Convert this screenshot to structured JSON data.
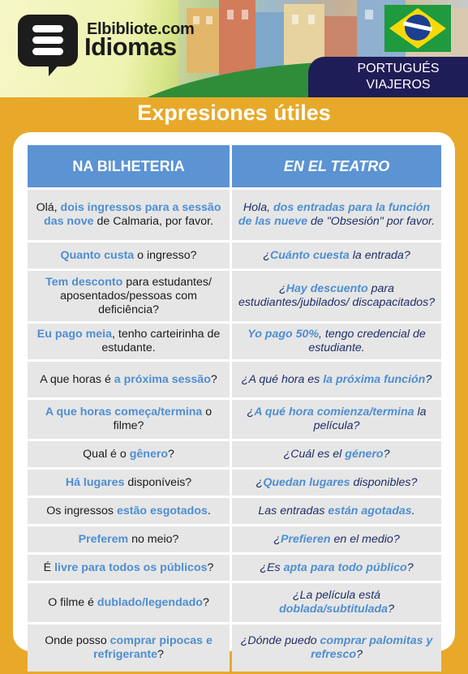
{
  "brand": {
    "top": "Elbibliote.com",
    "big": "Idiomas",
    "logo_icon": "chat-e-logo-icon"
  },
  "tag": {
    "line1": "PORTUGUÉS",
    "line2": "VIAJEROS"
  },
  "flag_icon": "brazil-flag-icon",
  "title": "Expresiones útiles",
  "colors": {
    "background": "#e8a92a",
    "header_cell": "#5b93d3",
    "highlight": "#4e8ed2",
    "row_bg": "#e6e6e6",
    "tag_bg": "#1f1d57"
  },
  "table": {
    "headers": [
      "NA BILHETERIA",
      "EN EL TEATRO"
    ],
    "rows": [
      {
        "pt": [
          {
            "t": "Olá, "
          },
          {
            "t": "dois ingressos para a sessão das nove",
            "hl": true
          },
          {
            "t": " de Calmaria, por favor."
          }
        ],
        "es": [
          {
            "t": "Hola, "
          },
          {
            "t": "dos entradas para la función de las nueve",
            "hl": true
          },
          {
            "t": " de \"Obsesión\" por favor."
          }
        ]
      },
      {
        "pt": [
          {
            "t": "Quanto custa",
            "hl": true
          },
          {
            "t": " o ingresso?"
          }
        ],
        "es": [
          {
            "t": "¿"
          },
          {
            "t": "Cuánto cuesta",
            "hl": true
          },
          {
            "t": " la entrada?"
          }
        ]
      },
      {
        "pt": [
          {
            "t": "Tem desconto",
            "hl": true
          },
          {
            "t": " para estudantes/ aposentados/pessoas com deficiência?"
          }
        ],
        "es": [
          {
            "t": "¿"
          },
          {
            "t": "Hay descuento",
            "hl": true
          },
          {
            "t": " para estudiantes/jubilados/ discapacitados?"
          }
        ]
      },
      {
        "pt": [
          {
            "t": "Eu pago meia",
            "hl": true
          },
          {
            "t": ", tenho carteirinha de estudante."
          }
        ],
        "es": [
          {
            "t": "Yo pago 50%",
            "hl": true
          },
          {
            "t": ", tengo credencial de estudiante."
          }
        ]
      },
      {
        "pt": [
          {
            "t": "A que horas é "
          },
          {
            "t": "a próxima sessão",
            "hl": true
          },
          {
            "t": "?"
          }
        ],
        "es": [
          {
            "t": "¿A qué hora es "
          },
          {
            "t": "la próxima función",
            "hl": true
          },
          {
            "t": "?"
          }
        ]
      },
      {
        "pt": [
          {
            "t": "A que horas começa/termina",
            "hl": true
          },
          {
            "t": " o filme?"
          }
        ],
        "es": [
          {
            "t": "¿"
          },
          {
            "t": "A qué hora comienza/termina",
            "hl": true
          },
          {
            "t": " la película?"
          }
        ]
      },
      {
        "pt": [
          {
            "t": "Qual é o "
          },
          {
            "t": "gênero",
            "hl": true
          },
          {
            "t": "?"
          }
        ],
        "es": [
          {
            "t": "¿Cuál es el "
          },
          {
            "t": "género",
            "hl": true
          },
          {
            "t": "?"
          }
        ]
      },
      {
        "pt": [
          {
            "t": "Há lugares",
            "hl": true
          },
          {
            "t": " disponíveis?"
          }
        ],
        "es": [
          {
            "t": "¿"
          },
          {
            "t": "Quedan lugares",
            "hl": true
          },
          {
            "t": " disponibles?"
          }
        ]
      },
      {
        "pt": [
          {
            "t": "Os ingressos "
          },
          {
            "t": "estão esgotados",
            "hl": true
          },
          {
            "t": "."
          }
        ],
        "es": [
          {
            "t": "Las entradas "
          },
          {
            "t": "están agotadas",
            "hl": true
          },
          {
            "t": "."
          }
        ]
      },
      {
        "pt": [
          {
            "t": "Preferem",
            "hl": true
          },
          {
            "t": " no meio?"
          }
        ],
        "es": [
          {
            "t": "¿"
          },
          {
            "t": "Prefieren",
            "hl": true
          },
          {
            "t": " en el medio?"
          }
        ]
      },
      {
        "pt": [
          {
            "t": "É "
          },
          {
            "t": "livre para todos os públicos",
            "hl": true
          },
          {
            "t": "?"
          }
        ],
        "es": [
          {
            "t": "¿Es "
          },
          {
            "t": "apta para todo público",
            "hl": true
          },
          {
            "t": "?"
          }
        ]
      },
      {
        "pt": [
          {
            "t": "O filme é "
          },
          {
            "t": "dublado/legendado",
            "hl": true
          },
          {
            "t": "?"
          }
        ],
        "es": [
          {
            "t": "¿La película está "
          },
          {
            "t": "doblada/subtitulada",
            "hl": true
          },
          {
            "t": "?"
          }
        ]
      },
      {
        "pt": [
          {
            "t": "Onde posso "
          },
          {
            "t": "comprar pipocas e refrigerante",
            "hl": true
          },
          {
            "t": "?"
          }
        ],
        "es": [
          {
            "t": "¿Dónde puedo "
          },
          {
            "t": "comprar palomitas y refresco",
            "hl": true
          },
          {
            "t": "?"
          }
        ]
      }
    ]
  }
}
